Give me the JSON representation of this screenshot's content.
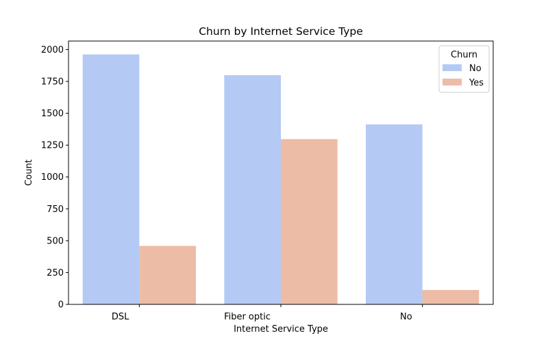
{
  "chart_data": {
    "type": "bar",
    "title": "Churn by Internet Service Type",
    "xlabel": "Internet Service Type",
    "ylabel": "Count",
    "categories": [
      "DSL",
      "Fiber optic",
      "No"
    ],
    "series": [
      {
        "name": "No",
        "values": [
          1962,
          1799,
          1413
        ],
        "color": "#b4c9f4"
      },
      {
        "name": "Yes",
        "values": [
          459,
          1297,
          113
        ],
        "color": "#ecbca6"
      }
    ],
    "ylim": [
      0,
      2067
    ],
    "yticks": [
      0,
      250,
      500,
      750,
      1000,
      1250,
      1500,
      1750,
      2000
    ],
    "legend": {
      "title": "Churn",
      "placement": "top-right"
    },
    "grid": false
  }
}
